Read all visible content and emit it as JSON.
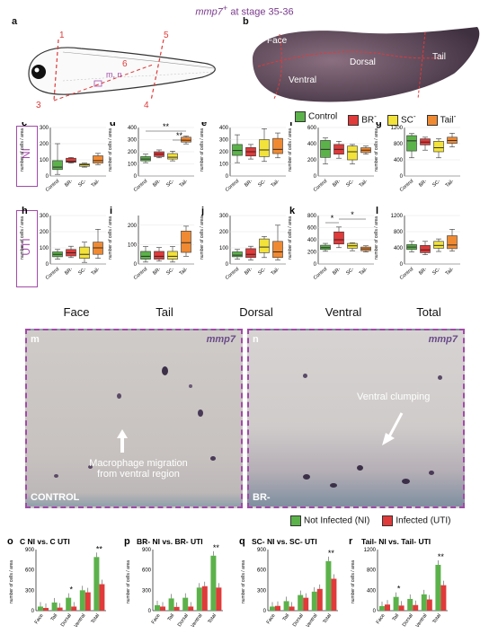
{
  "title": {
    "gene": "mmp7",
    "sup": "+",
    "rest": " at stage 35-36"
  },
  "panel_a": {
    "label": "a",
    "cut_labels": [
      "1",
      "2",
      "3",
      "4",
      "5",
      "6"
    ],
    "mn_label": "m, n"
  },
  "panel_b": {
    "label": "b",
    "regions": [
      "Face",
      "Dorsal",
      "Ventral",
      "Tail"
    ]
  },
  "legend_groups": [
    {
      "name": "Control",
      "color": "#5bb24a"
    },
    {
      "name": "BR",
      "sup": "-",
      "color": "#e03a3a"
    },
    {
      "name": "SC",
      "sup": "-",
      "color": "#f2e23a"
    },
    {
      "name": "Tail",
      "sup": "-",
      "color": "#f08a32"
    }
  ],
  "row_labels": {
    "ni": "NI",
    "uti": "UTI"
  },
  "region_labels": [
    "Face",
    "Tail",
    "Dorsal",
    "Ventral",
    "Total"
  ],
  "ylabel": "number of cells / area",
  "xticks": [
    "Control",
    "BR-",
    "SC-",
    "Tail-"
  ],
  "chart_data": [
    {
      "type": "box",
      "panel": "c",
      "ylim": [
        0,
        300
      ],
      "yticks": [
        0,
        100,
        200,
        300
      ],
      "boxes": [
        {
          "q1": 40,
          "med": 55,
          "q3": 95,
          "lo": 10,
          "hi": 200
        },
        {
          "q1": 85,
          "med": 90,
          "q3": 110,
          "lo": 80,
          "hi": 115
        },
        {
          "q1": 60,
          "med": 70,
          "q3": 75,
          "lo": 55,
          "hi": 80
        },
        {
          "q1": 80,
          "med": 95,
          "q3": 125,
          "lo": 70,
          "hi": 140
        }
      ]
    },
    {
      "type": "box",
      "panel": "d",
      "ylim": [
        0,
        400
      ],
      "yticks": [
        0,
        100,
        200,
        300,
        400
      ],
      "boxes": [
        {
          "q1": 125,
          "med": 140,
          "q3": 160,
          "lo": 110,
          "hi": 180
        },
        {
          "q1": 160,
          "med": 180,
          "q3": 200,
          "lo": 150,
          "hi": 215
        },
        {
          "q1": 140,
          "med": 155,
          "q3": 185,
          "lo": 125,
          "hi": 205
        },
        {
          "q1": 280,
          "med": 295,
          "q3": 320,
          "lo": 265,
          "hi": 330
        }
      ],
      "annotations": [
        "**",
        "**"
      ]
    },
    {
      "type": "box",
      "panel": "e",
      "ylim": [
        0,
        400
      ],
      "yticks": [
        0,
        100,
        200,
        300,
        400
      ],
      "boxes": [
        {
          "q1": 170,
          "med": 210,
          "q3": 260,
          "lo": 110,
          "hi": 340
        },
        {
          "q1": 165,
          "med": 200,
          "q3": 235,
          "lo": 140,
          "hi": 260
        },
        {
          "q1": 160,
          "med": 215,
          "q3": 300,
          "lo": 120,
          "hi": 390
        },
        {
          "q1": 185,
          "med": 220,
          "q3": 310,
          "lo": 150,
          "hi": 355
        }
      ]
    },
    {
      "type": "box",
      "panel": "f",
      "ylim": [
        0,
        600
      ],
      "yticks": [
        0,
        200,
        400,
        600
      ],
      "boxes": [
        {
          "q1": 230,
          "med": 330,
          "q3": 440,
          "lo": 150,
          "hi": 470
        },
        {
          "q1": 270,
          "med": 330,
          "q3": 390,
          "lo": 220,
          "hi": 430
        },
        {
          "q1": 200,
          "med": 300,
          "q3": 370,
          "lo": 150,
          "hi": 390
        },
        {
          "q1": 290,
          "med": 320,
          "q3": 350,
          "lo": 270,
          "hi": 370
        }
      ]
    },
    {
      "type": "box",
      "panel": "g",
      "ylim": [
        0,
        1200
      ],
      "yticks": [
        0,
        400,
        800,
        1200
      ],
      "boxes": [
        {
          "q1": 620,
          "med": 870,
          "q3": 1000,
          "lo": 450,
          "hi": 1050
        },
        {
          "q1": 770,
          "med": 840,
          "q3": 920,
          "lo": 640,
          "hi": 960
        },
        {
          "q1": 600,
          "med": 700,
          "q3": 860,
          "lo": 450,
          "hi": 920
        },
        {
          "q1": 810,
          "med": 880,
          "q3": 960,
          "lo": 720,
          "hi": 1060
        }
      ]
    },
    {
      "type": "box",
      "panel": "h",
      "ylim": [
        0,
        300
      ],
      "yticks": [
        0,
        100,
        200,
        300
      ],
      "boxes": [
        {
          "q1": 45,
          "med": 60,
          "q3": 75,
          "lo": 30,
          "hi": 90
        },
        {
          "q1": 50,
          "med": 70,
          "q3": 90,
          "lo": 40,
          "hi": 110
        },
        {
          "q1": 35,
          "med": 60,
          "q3": 105,
          "lo": 10,
          "hi": 135
        },
        {
          "q1": 60,
          "med": 100,
          "q3": 135,
          "lo": 35,
          "hi": 215
        }
      ]
    },
    {
      "type": "box",
      "panel": "i",
      "ylim": [
        0,
        250
      ],
      "yticks": [
        0,
        100,
        200
      ],
      "boxes": [
        {
          "q1": 25,
          "med": 40,
          "q3": 65,
          "lo": 10,
          "hi": 90
        },
        {
          "q1": 25,
          "med": 40,
          "q3": 65,
          "lo": 15,
          "hi": 85
        },
        {
          "q1": 25,
          "med": 40,
          "q3": 65,
          "lo": 10,
          "hi": 90
        },
        {
          "q1": 60,
          "med": 110,
          "q3": 170,
          "lo": 40,
          "hi": 195
        }
      ]
    },
    {
      "type": "box",
      "panel": "j",
      "ylim": [
        0,
        300
      ],
      "yticks": [
        0,
        100,
        200,
        300
      ],
      "boxes": [
        {
          "q1": 45,
          "med": 55,
          "q3": 75,
          "lo": 30,
          "hi": 90
        },
        {
          "q1": 40,
          "med": 60,
          "q3": 95,
          "lo": 25,
          "hi": 110
        },
        {
          "q1": 70,
          "med": 105,
          "q3": 155,
          "lo": 40,
          "hi": 170
        },
        {
          "q1": 40,
          "med": 75,
          "q3": 140,
          "lo": 25,
          "hi": 240
        }
      ]
    },
    {
      "type": "box",
      "panel": "k",
      "ylim": [
        0,
        800
      ],
      "yticks": [
        0,
        200,
        400,
        600,
        800
      ],
      "boxes": [
        {
          "q1": 240,
          "med": 270,
          "q3": 310,
          "lo": 210,
          "hi": 340
        },
        {
          "q1": 330,
          "med": 400,
          "q3": 530,
          "lo": 270,
          "hi": 610
        },
        {
          "q1": 260,
          "med": 300,
          "q3": 340,
          "lo": 220,
          "hi": 350
        },
        {
          "q1": 220,
          "med": 250,
          "q3": 280,
          "lo": 200,
          "hi": 300
        }
      ],
      "annotations": [
        "*",
        "*"
      ]
    },
    {
      "type": "box",
      "panel": "l",
      "ylim": [
        0,
        1200
      ],
      "yticks": [
        0,
        400,
        800,
        1200
      ],
      "boxes": [
        {
          "q1": 360,
          "med": 420,
          "q3": 480,
          "lo": 300,
          "hi": 560
        },
        {
          "q1": 280,
          "med": 350,
          "q3": 460,
          "lo": 230,
          "hi": 560
        },
        {
          "q1": 390,
          "med": 460,
          "q3": 560,
          "lo": 310,
          "hi": 620
        },
        {
          "q1": 380,
          "med": 470,
          "q3": 700,
          "lo": 320,
          "hi": 860
        }
      ]
    },
    {
      "type": "bar",
      "panel": "o",
      "title": "C NI vs. C UTI",
      "ylim": [
        0,
        900
      ],
      "yticks": [
        0,
        300,
        600,
        900
      ],
      "categories": [
        "Face",
        "Tail",
        "Dorsal",
        "Ventral",
        "Total"
      ],
      "series": [
        {
          "name": "NI",
          "values": [
            60,
            120,
            190,
            300,
            790
          ]
        },
        {
          "name": "UTI",
          "values": [
            40,
            45,
            60,
            270,
            390
          ]
        }
      ],
      "annotations": [
        "",
        "",
        "*",
        "",
        "**"
      ]
    },
    {
      "type": "bar",
      "panel": "p",
      "title": "BR- NI vs. BR- UTI",
      "ylim": [
        0,
        900
      ],
      "yticks": [
        0,
        300,
        600,
        900
      ],
      "categories": [
        "Face",
        "Tail",
        "Dorsal",
        "Ventral",
        "Total"
      ],
      "series": [
        {
          "name": "NI",
          "values": [
            80,
            180,
            190,
            340,
            810
          ]
        },
        {
          "name": "UTI",
          "values": [
            60,
            55,
            60,
            360,
            340
          ]
        }
      ],
      "annotations": [
        "",
        "",
        "",
        "",
        "**"
      ]
    },
    {
      "type": "bar",
      "panel": "q",
      "title": "SC- NI vs. SC- UTI",
      "ylim": [
        0,
        900
      ],
      "yticks": [
        0,
        300,
        600,
        900
      ],
      "categories": [
        "Face",
        "Tail",
        "Dorsal",
        "Ventral",
        "Total"
      ],
      "series": [
        {
          "name": "NI",
          "values": [
            60,
            140,
            230,
            280,
            730
          ]
        },
        {
          "name": "UTI",
          "values": [
            70,
            60,
            190,
            320,
            470
          ]
        }
      ],
      "annotations": [
        "",
        "",
        "",
        "",
        "**"
      ]
    },
    {
      "type": "bar",
      "panel": "r",
      "title": "Tail- NI vs. Tail- UTI",
      "ylim": [
        0,
        1200
      ],
      "yticks": [
        0,
        400,
        800,
        1200
      ],
      "categories": [
        "Face",
        "Tail",
        "Dorsal",
        "Ventral",
        "Total"
      ],
      "series": [
        {
          "name": "NI",
          "values": [
            90,
            270,
            230,
            320,
            900
          ]
        },
        {
          "name": "UTI",
          "values": [
            120,
            100,
            110,
            220,
            500
          ]
        }
      ],
      "annotations": [
        "",
        "*",
        "",
        "",
        "**"
      ]
    }
  ],
  "panel_m": {
    "label": "m",
    "gene": "mmp7",
    "arrow_text": "Macrophage migration\nfrom ventral region",
    "corner": "CONTROL"
  },
  "panel_n": {
    "label": "n",
    "gene": "mmp7",
    "arrow_text": "Ventral clumping",
    "corner": "BR-"
  },
  "bar_legend": [
    {
      "name": "Not Infected (NI)",
      "color": "#5bb24a"
    },
    {
      "name": "Infected (UTI)",
      "color": "#e03a3a"
    }
  ]
}
